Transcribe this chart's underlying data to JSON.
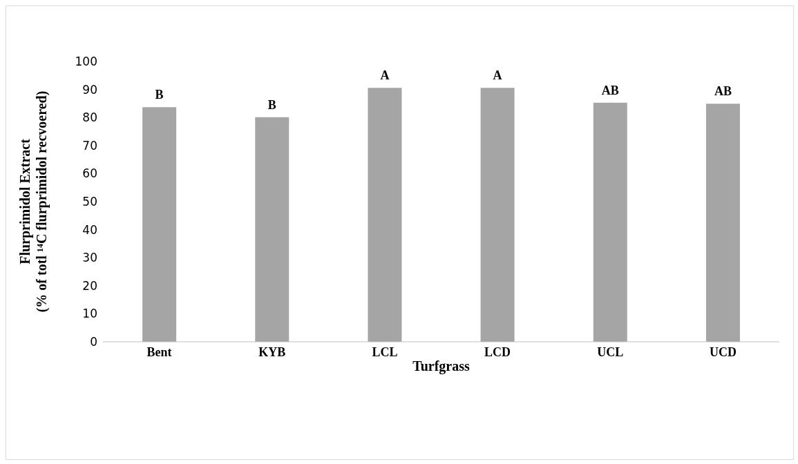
{
  "chart_data": {
    "type": "bar",
    "xlabel": "Turfgrass",
    "ylabel": "Flurprimidol Extract\n(% of totl ¹⁴C flurprimidol recvoered)",
    "categories": [
      "Bent",
      "KYB",
      "LCL",
      "LCD",
      "UCL",
      "UCD"
    ],
    "values": [
      83.7,
      80.1,
      90.6,
      90.6,
      85.3,
      84.9
    ],
    "color": "#a5a5a5",
    "ylim": [
      0,
      100
    ],
    "yticks": [
      0,
      10,
      20,
      30,
      40,
      50,
      60,
      70,
      80,
      90,
      100
    ],
    "grid": false,
    "legend": false,
    "annotations": [
      {
        "text": "B",
        "x": "Bent",
        "y": 83.7
      },
      {
        "text": "B",
        "x": "KYB",
        "y": 80.1
      },
      {
        "text": "A",
        "x": "LCL",
        "y": 90.6
      },
      {
        "text": "A",
        "x": "LCD",
        "y": 90.6
      },
      {
        "text": "AB",
        "x": "UCL",
        "y": 85.3
      },
      {
        "text": "AB",
        "x": "UCD",
        "y": 84.9
      }
    ]
  }
}
